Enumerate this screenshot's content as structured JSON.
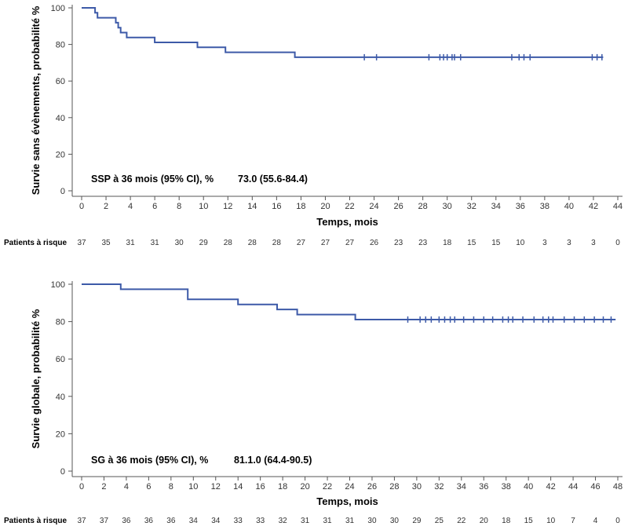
{
  "chart_data": [
    {
      "type": "line",
      "subtype": "kaplan-meier",
      "ylabel": "Survie sans évènements, probabilité %",
      "xlabel": "Temps, mois",
      "xlim": [
        0,
        44
      ],
      "ylim": [
        0,
        100
      ],
      "xticks": [
        0,
        2,
        4,
        6,
        8,
        10,
        12,
        14,
        16,
        18,
        20,
        22,
        24,
        26,
        28,
        30,
        32,
        34,
        36,
        38,
        40,
        42,
        44
      ],
      "yticks": [
        0,
        20,
        40,
        60,
        80,
        100
      ],
      "line_color": "#3d5aa8",
      "annotation": {
        "label": "SSP à 36 mois (95% CI), %",
        "value": "73.0 (55.6-84.4)"
      },
      "steps": [
        [
          0,
          100
        ],
        [
          1.1,
          100
        ],
        [
          1.1,
          97.3
        ],
        [
          1.3,
          97.3
        ],
        [
          1.3,
          94.6
        ],
        [
          2.8,
          94.6
        ],
        [
          2.8,
          91.9
        ],
        [
          3.0,
          91.9
        ],
        [
          3.0,
          89.2
        ],
        [
          3.2,
          89.2
        ],
        [
          3.2,
          86.5
        ],
        [
          3.7,
          86.5
        ],
        [
          3.7,
          83.8
        ],
        [
          6.0,
          83.8
        ],
        [
          6.0,
          81.1
        ],
        [
          9.5,
          81.1
        ],
        [
          9.5,
          78.4
        ],
        [
          11.8,
          78.4
        ],
        [
          11.8,
          75.7
        ],
        [
          17.5,
          75.7
        ],
        [
          17.5,
          73.0
        ],
        [
          42.8,
          73.0
        ]
      ],
      "censor_times": [
        23.2,
        24.2,
        28.5,
        29.4,
        29.7,
        30.0,
        30.4,
        30.6,
        31.1,
        35.3,
        35.9,
        36.3,
        36.8,
        41.9,
        42.3,
        42.7
      ],
      "risk_table": {
        "label": "Patients à risque",
        "counts": [
          "37",
          "35",
          "31",
          "31",
          "30",
          "29",
          "28",
          "28",
          "28",
          "27",
          "27",
          "27",
          "26",
          "23",
          "23",
          "18",
          "15",
          "15",
          "10",
          "3",
          "3",
          "3",
          "0"
        ]
      }
    },
    {
      "type": "line",
      "subtype": "kaplan-meier",
      "ylabel": "Survie globale, probabilité %",
      "xlabel": "Temps, mois",
      "xlim": [
        0,
        48
      ],
      "ylim": [
        0,
        100
      ],
      "xticks": [
        0,
        2,
        4,
        6,
        8,
        10,
        12,
        14,
        16,
        18,
        20,
        22,
        24,
        26,
        28,
        30,
        32,
        34,
        36,
        38,
        40,
        42,
        44,
        46,
        48
      ],
      "yticks": [
        0,
        20,
        40,
        60,
        80,
        100
      ],
      "line_color": "#3d5aa8",
      "annotation": {
        "label": "SG à 36 mois (95% CI), %",
        "value": "81.1.0 (64.4-90.5)"
      },
      "steps": [
        [
          0,
          100
        ],
        [
          3.5,
          100
        ],
        [
          3.5,
          97.3
        ],
        [
          9.5,
          97.3
        ],
        [
          9.5,
          91.9
        ],
        [
          14.0,
          91.9
        ],
        [
          14.0,
          89.2
        ],
        [
          17.5,
          89.2
        ],
        [
          17.5,
          86.5
        ],
        [
          19.3,
          86.5
        ],
        [
          19.3,
          83.8
        ],
        [
          24.5,
          83.8
        ],
        [
          24.5,
          81.1
        ],
        [
          47.8,
          81.1
        ]
      ],
      "censor_times": [
        29.2,
        30.3,
        30.8,
        31.3,
        32.0,
        32.5,
        33.0,
        33.4,
        34.2,
        35.1,
        36.0,
        36.8,
        37.7,
        38.2,
        38.6,
        39.5,
        40.5,
        41.3,
        41.8,
        42.2,
        43.2,
        44.1,
        45.0,
        45.9,
        46.7,
        47.4
      ],
      "risk_table": {
        "label": "Patients à risque",
        "counts": [
          "37",
          "37",
          "36",
          "36",
          "36",
          "34",
          "34",
          "33",
          "33",
          "32",
          "31",
          "31",
          "31",
          "30",
          "30",
          "29",
          "25",
          "22",
          "20",
          "18",
          "15",
          "10",
          "7",
          "4",
          "0"
        ]
      }
    }
  ]
}
